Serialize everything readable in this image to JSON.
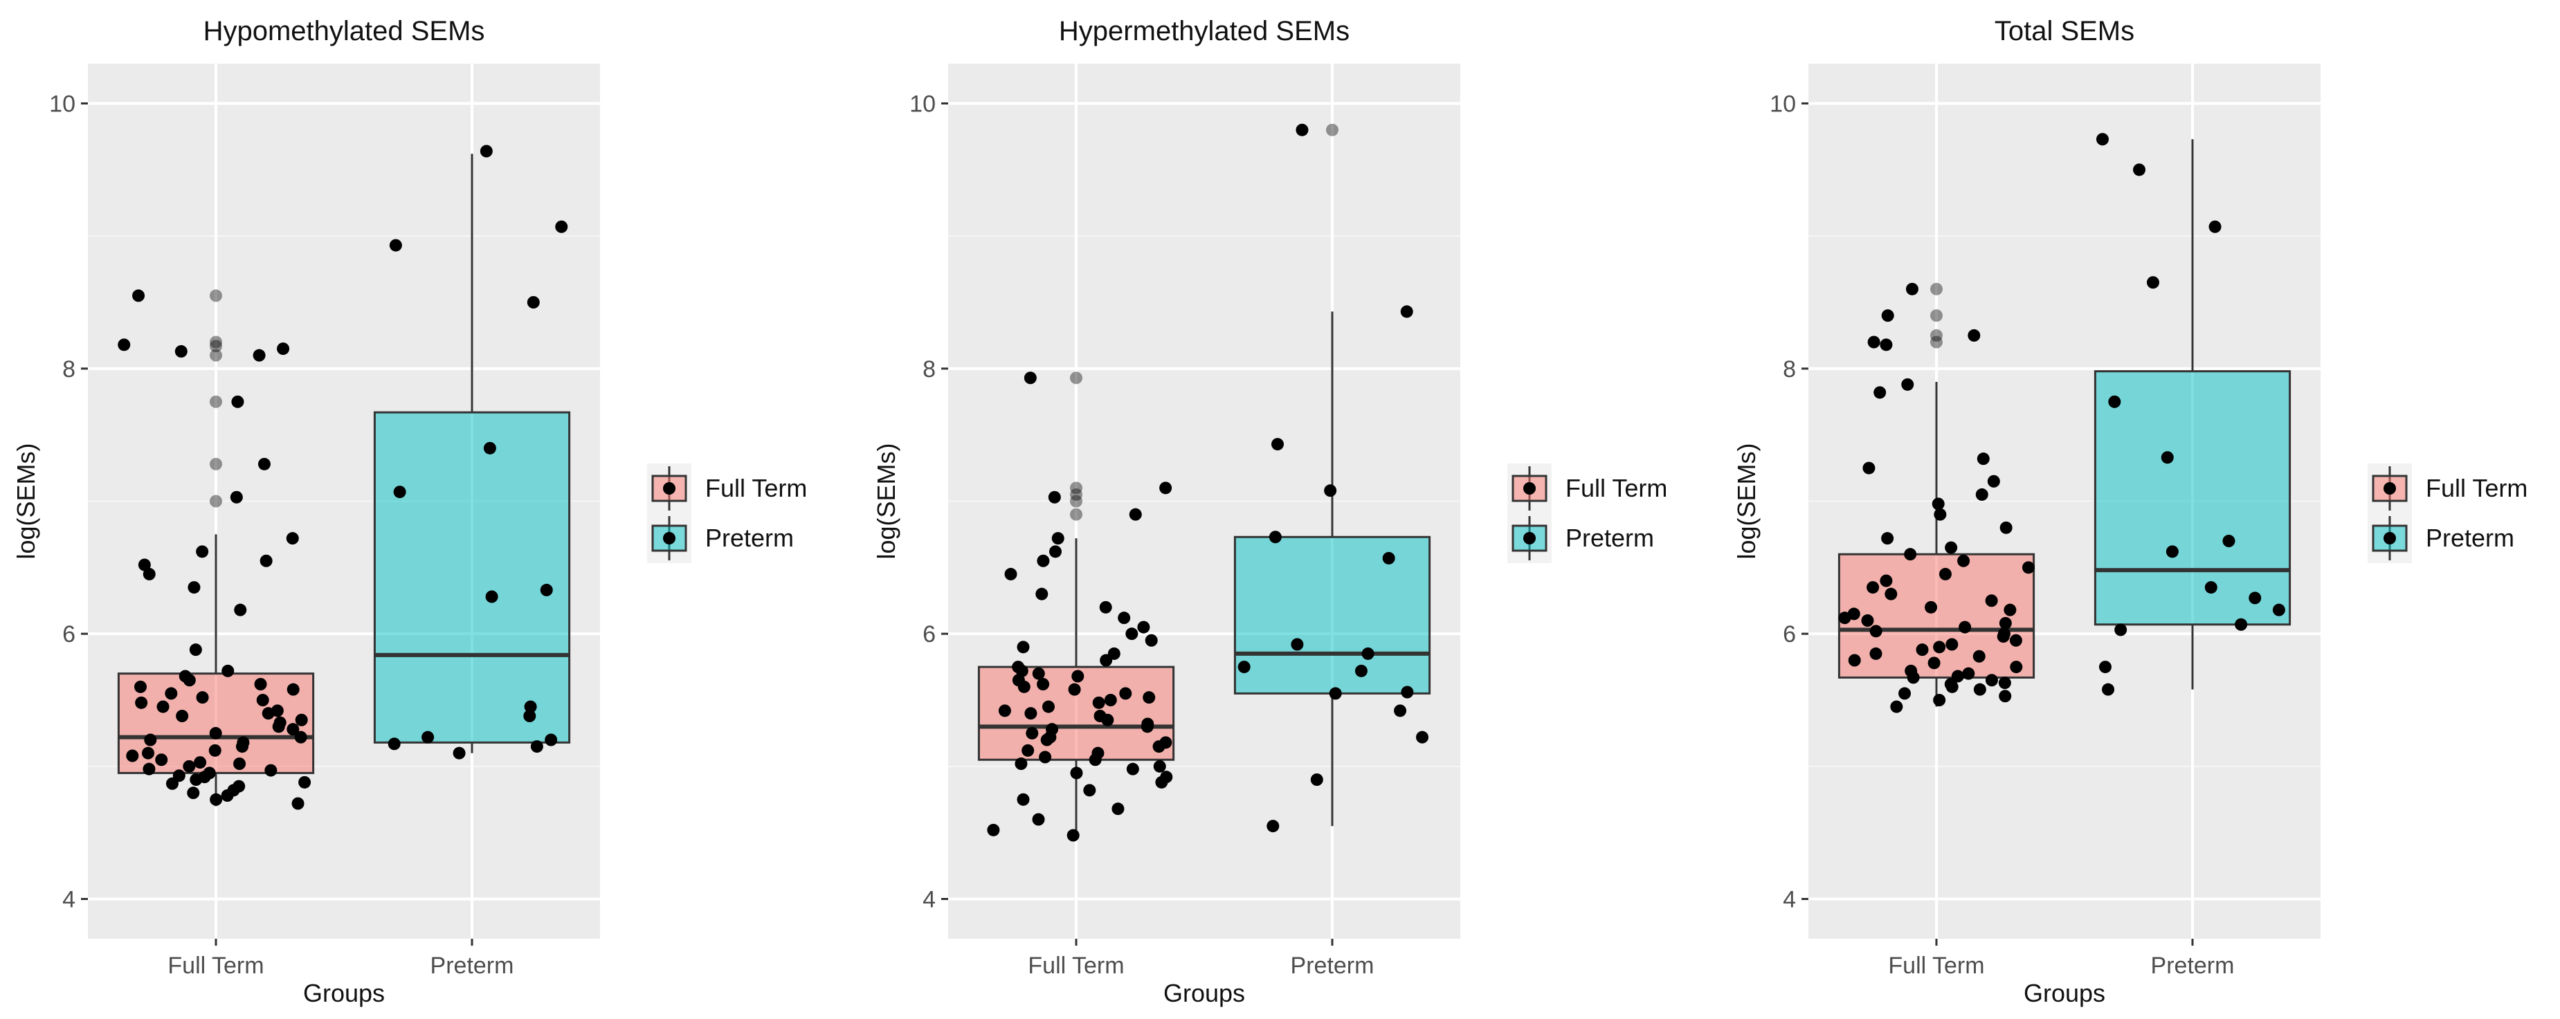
{
  "figure": {
    "xlabel": "Groups",
    "ylabel": "log(SEMs)"
  },
  "legend": [
    {
      "name": "Full Term",
      "color": "#F8766D"
    },
    {
      "name": "Preterm",
      "color": "#00BFC4"
    }
  ],
  "chart_data": [
    {
      "type": "boxplot",
      "title": "Hypomethylated SEMs",
      "xlabel": "Groups",
      "ylabel": "log(SEMs)",
      "categories": [
        "Full Term",
        "Preterm"
      ],
      "ylim": [
        3.7,
        10.3
      ],
      "yticks": [
        4,
        6,
        8,
        10
      ],
      "boxes": [
        {
          "category": "Full Term",
          "min": 4.7,
          "q1": 4.95,
          "median": 5.22,
          "q3": 5.7,
          "max": 6.75,
          "outliers": [
            7.0,
            7.28,
            7.75,
            8.1,
            8.17,
            8.2,
            8.55
          ]
        },
        {
          "category": "Preterm",
          "min": 5.1,
          "q1": 5.18,
          "median": 5.84,
          "q3": 7.67,
          "max": 9.62,
          "outliers": []
        }
      ],
      "points": [
        {
          "category": "Full Term",
          "values": [
            4.72,
            4.75,
            4.78,
            4.8,
            4.82,
            4.85,
            4.87,
            4.88,
            4.9,
            4.92,
            4.93,
            4.95,
            4.97,
            4.98,
            5.0,
            5.02,
            5.03,
            5.05,
            5.08,
            5.1,
            5.12,
            5.15,
            5.18,
            5.2,
            5.22,
            5.25,
            5.28,
            5.3,
            5.33,
            5.35,
            5.38,
            5.4,
            5.42,
            5.45,
            5.48,
            5.5,
            5.52,
            5.55,
            5.58,
            5.6,
            5.62,
            5.65,
            5.68,
            5.72,
            5.88,
            6.18,
            6.35,
            6.45,
            6.52,
            6.55,
            6.62,
            6.72,
            7.03,
            7.28,
            7.75,
            8.1,
            8.13,
            8.15,
            8.18,
            8.55
          ]
        },
        {
          "category": "Preterm",
          "values": [
            5.1,
            5.15,
            5.17,
            5.2,
            5.22,
            5.38,
            5.45,
            6.28,
            6.33,
            7.07,
            7.4,
            8.5,
            8.93,
            9.07,
            9.64
          ]
        }
      ]
    },
    {
      "type": "boxplot",
      "title": "Hypermethylated SEMs",
      "xlabel": "Groups",
      "ylabel": "log(SEMs)",
      "categories": [
        "Full Term",
        "Preterm"
      ],
      "ylim": [
        3.7,
        10.3
      ],
      "yticks": [
        4,
        6,
        8,
        10
      ],
      "boxes": [
        {
          "category": "Full Term",
          "min": 4.48,
          "q1": 5.05,
          "median": 5.3,
          "q3": 5.75,
          "max": 6.72,
          "outliers": [
            6.9,
            7.0,
            7.05,
            7.1,
            7.93
          ]
        },
        {
          "category": "Preterm",
          "min": 4.55,
          "q1": 5.55,
          "median": 5.85,
          "q3": 6.73,
          "max": 8.43,
          "outliers": [
            9.8
          ]
        }
      ],
      "points": [
        {
          "category": "Full Term",
          "values": [
            4.48,
            4.52,
            4.6,
            4.68,
            4.75,
            4.82,
            4.88,
            4.92,
            4.95,
            4.98,
            5.0,
            5.02,
            5.05,
            5.07,
            5.1,
            5.12,
            5.15,
            5.18,
            5.2,
            5.22,
            5.25,
            5.28,
            5.3,
            5.32,
            5.35,
            5.38,
            5.4,
            5.42,
            5.45,
            5.48,
            5.5,
            5.52,
            5.55,
            5.58,
            5.6,
            5.62,
            5.65,
            5.68,
            5.7,
            5.72,
            5.75,
            5.8,
            5.85,
            5.9,
            5.95,
            6.0,
            6.05,
            6.12,
            6.2,
            6.3,
            6.45,
            6.55,
            6.62,
            6.72,
            6.9,
            7.03,
            7.1,
            7.93
          ]
        },
        {
          "category": "Preterm",
          "values": [
            4.55,
            4.9,
            5.22,
            5.42,
            5.55,
            5.56,
            5.72,
            5.75,
            5.85,
            5.92,
            6.57,
            6.73,
            7.08,
            7.43,
            8.43,
            9.8
          ]
        }
      ]
    },
    {
      "type": "boxplot",
      "title": "Total SEMs",
      "xlabel": "Groups",
      "ylabel": "log(SEMs)",
      "categories": [
        "Full Term",
        "Preterm"
      ],
      "ylim": [
        3.7,
        10.3
      ],
      "yticks": [
        4,
        6,
        8,
        10
      ],
      "boxes": [
        {
          "category": "Full Term",
          "min": 5.45,
          "q1": 5.67,
          "median": 6.03,
          "q3": 6.6,
          "max": 7.9,
          "outliers": [
            8.2,
            8.25,
            8.4,
            8.6
          ]
        },
        {
          "category": "Preterm",
          "min": 5.58,
          "q1": 6.07,
          "median": 6.48,
          "q3": 7.98,
          "max": 9.73,
          "outliers": []
        }
      ],
      "points": [
        {
          "category": "Full Term",
          "values": [
            5.45,
            5.5,
            5.53,
            5.55,
            5.58,
            5.6,
            5.62,
            5.63,
            5.65,
            5.67,
            5.68,
            5.7,
            5.72,
            5.75,
            5.78,
            5.8,
            5.83,
            5.85,
            5.88,
            5.9,
            5.92,
            5.95,
            5.98,
            6.0,
            6.02,
            6.05,
            6.08,
            6.1,
            6.12,
            6.15,
            6.18,
            6.2,
            6.25,
            6.3,
            6.35,
            6.4,
            6.45,
            6.5,
            6.55,
            6.6,
            6.65,
            6.72,
            6.8,
            6.9,
            6.98,
            7.05,
            7.15,
            7.25,
            7.32,
            7.82,
            7.88,
            8.18,
            8.2,
            8.25,
            8.4,
            8.6
          ]
        },
        {
          "category": "Preterm",
          "values": [
            5.58,
            5.75,
            6.03,
            6.07,
            6.18,
            6.27,
            6.35,
            6.62,
            6.7,
            7.33,
            7.75,
            8.65,
            9.07,
            9.5,
            9.73
          ]
        }
      ]
    }
  ]
}
